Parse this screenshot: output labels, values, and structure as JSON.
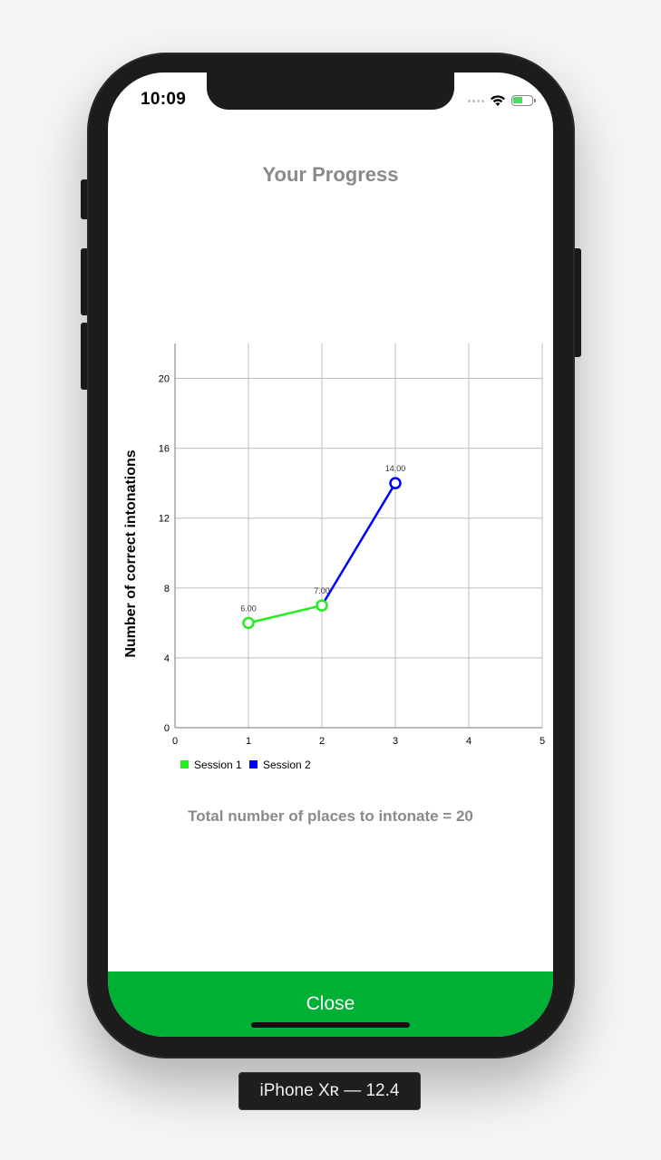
{
  "device": {
    "label": "iPhone Xʀ — 12.4"
  },
  "status_bar": {
    "time": "10:09",
    "icons": [
      "signal-icon",
      "wifi-icon",
      "battery-charging-icon"
    ]
  },
  "screen": {
    "title": "Your Progress",
    "total_text": "Total number of places to intonate = 20",
    "close_label": "Close"
  },
  "colors": {
    "session1": "#22ee22",
    "session2": "#0000ff",
    "close_bar": "#00b035",
    "title_gray": "#8a8a8a"
  },
  "chart_data": {
    "type": "line",
    "ylabel": "Number of correct intonations",
    "xlabel": "",
    "xlim": [
      0,
      5
    ],
    "ylim": [
      0,
      22
    ],
    "x_ticks": [
      "0",
      "1",
      "2",
      "3",
      "4",
      "5"
    ],
    "y_ticks": [
      "0",
      "4",
      "8",
      "12",
      "16",
      "20"
    ],
    "grid": true,
    "legend_position": "bottom-left",
    "series": [
      {
        "name": "Session 1",
        "color": "#22ee22",
        "points": [
          {
            "x": 1,
            "y": 6,
            "label": "6.00"
          },
          {
            "x": 2,
            "y": 7,
            "label": "7.00"
          }
        ]
      },
      {
        "name": "Session 2",
        "color": "#0000ff",
        "points": [
          {
            "x": 2,
            "y": 7,
            "label": ""
          },
          {
            "x": 3,
            "y": 14,
            "label": "14.00"
          }
        ]
      }
    ]
  }
}
